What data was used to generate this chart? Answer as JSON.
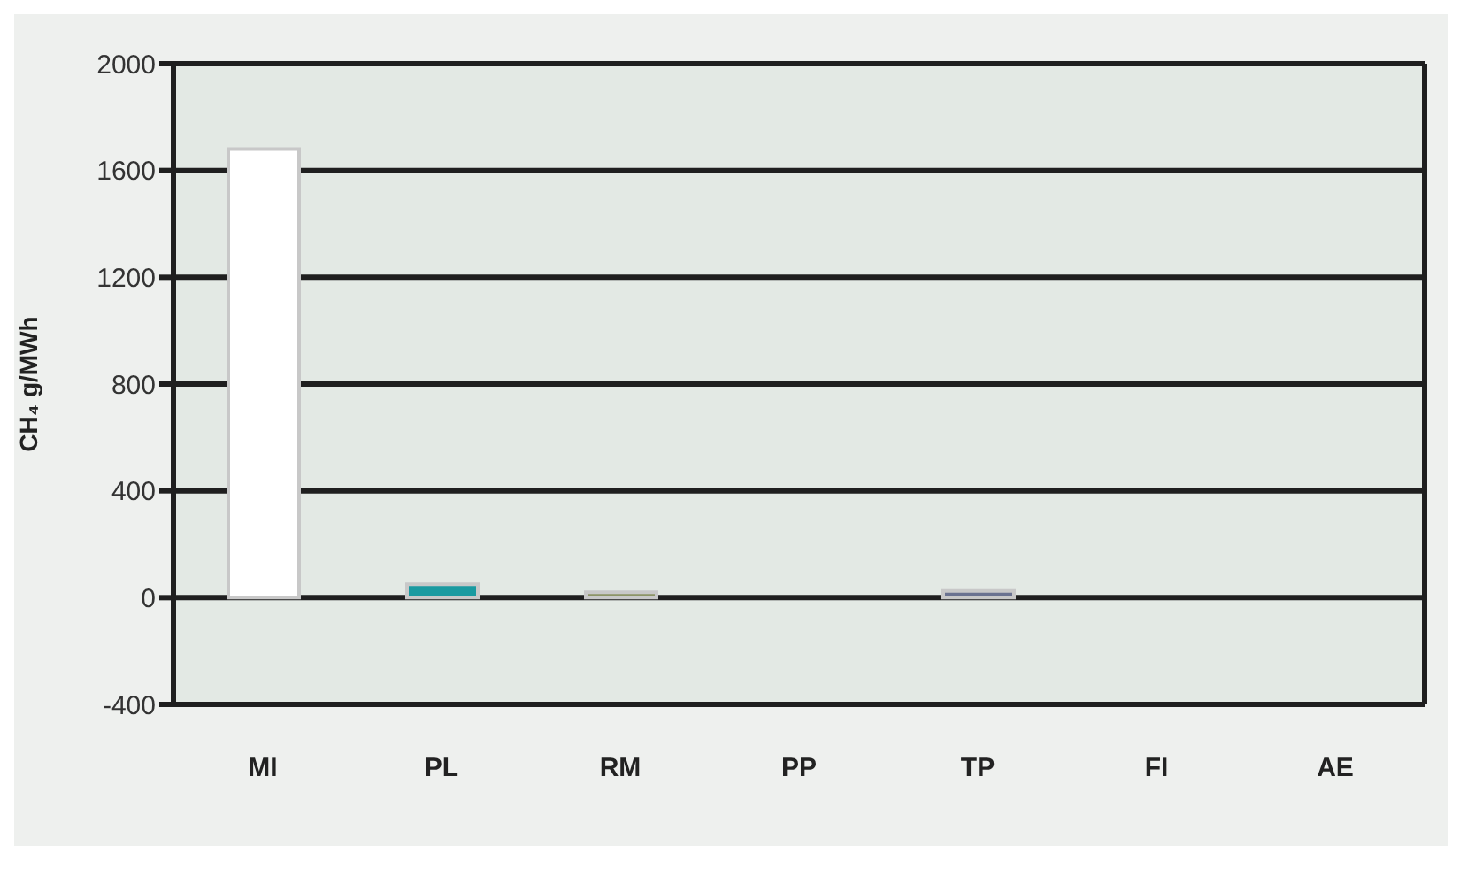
{
  "chart_data": {
    "type": "bar",
    "ylabel": "CH₄ g/MWh",
    "categories": [
      "MI",
      "PL",
      "RM",
      "PP",
      "TP",
      "FI",
      "AE"
    ],
    "values": [
      1680,
      50,
      20,
      0,
      25,
      0,
      0
    ],
    "colors": [
      "#ffffff",
      "#1a9aa0",
      "#8c9466",
      "#9aa0a0",
      "#6a7290",
      "#9aa0a0",
      "#9aa0a0"
    ],
    "ylim": [
      -400,
      2000
    ],
    "yticks": [
      -400,
      0,
      400,
      800,
      1200,
      1600,
      2000
    ],
    "grid": "y"
  }
}
